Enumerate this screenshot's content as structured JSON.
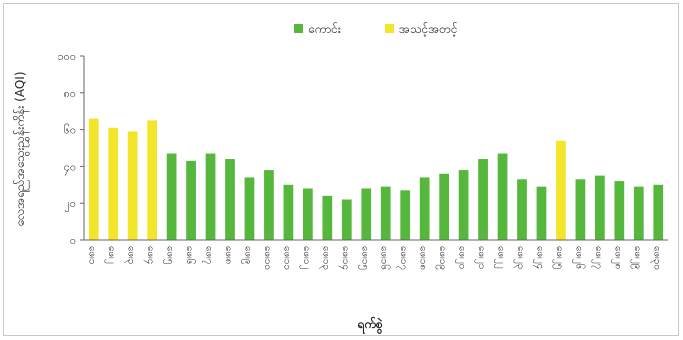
{
  "chart_data": {
    "type": "bar",
    "title": "",
    "xlabel": "ရက်စွဲ",
    "ylabel": "လေအရည်အသွေးညွှန်းကိန်း (AQI)",
    "ylim": [
      0,
      100
    ],
    "yticks": [
      0,
      20,
      40,
      60,
      80,
      100
    ],
    "ytick_labels": [
      "၀",
      "၂၀",
      "၄၀",
      "၆၀",
      "၈၀",
      "၁၀၀"
    ],
    "grid": false,
    "legend_position": "top",
    "colors": {
      "good": "#55b83c",
      "moderate": "#f3e52c"
    },
    "legend": [
      {
        "key": "good",
        "label": "ကောင်း"
      },
      {
        "key": "moderate",
        "label": "အသင့်အတင့်"
      }
    ],
    "categories": [
      "ဖေ၊၁",
      "ဖေ၊၂",
      "ဖေ၊၃",
      "ဖေ၊၄",
      "ဖေ၊၅",
      "ဖေ၊၆",
      "ဖေ၊၇",
      "ဖေ၊၈",
      "ဖေ၊၉",
      "ဖေ၊၁၀",
      "ဖေ၊၁၁",
      "ဖေ၊၁၂",
      "ဖေ၊၁၃",
      "ဖေ၊၁၄",
      "ဖေ၊၁၅",
      "ဖေ၊၁၆",
      "ဖေ၊၁၇",
      "ဖေ၊၁၈",
      "ဖေ၊၁၉",
      "ဖေ၊၂၀",
      "ဖေ၊၂၁",
      "ဖေ၊၂၂",
      "ဖေ၊၂၃",
      "ဖေ၊၂၄",
      "ဖေ၊၂၅",
      "ဖေ၊၂၆",
      "ဖေ၊၂၇",
      "ဖေ၊၂၈",
      "ဖေ၊၂၉",
      "ဖေ၊၃၀"
    ],
    "values": [
      66,
      61,
      59,
      65,
      47,
      43,
      47,
      44,
      34,
      38,
      30,
      28,
      24,
      22,
      28,
      29,
      27,
      34,
      36,
      38,
      44,
      47,
      33,
      29,
      54,
      33,
      35,
      32,
      29,
      30
    ],
    "status": [
      "moderate",
      "moderate",
      "moderate",
      "moderate",
      "good",
      "good",
      "good",
      "good",
      "good",
      "good",
      "good",
      "good",
      "good",
      "good",
      "good",
      "good",
      "good",
      "good",
      "good",
      "good",
      "good",
      "good",
      "good",
      "good",
      "moderate",
      "good",
      "good",
      "good",
      "good",
      "good"
    ]
  }
}
